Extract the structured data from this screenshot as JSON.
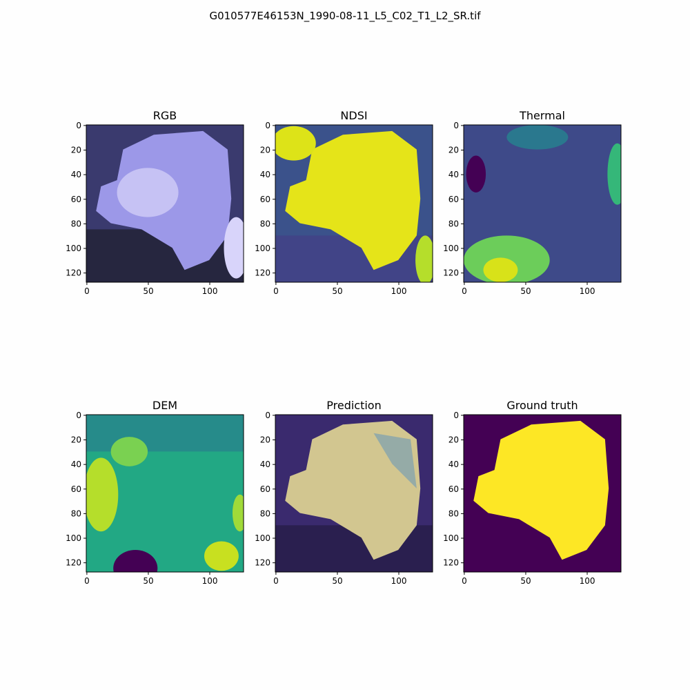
{
  "title": "G010577E46153N_1990-08-11_L5_C02_T1_L2_SR.tif",
  "chart_data": [
    {
      "type": "image",
      "title": "RGB",
      "xlim": [
        -0.5,
        127.5
      ],
      "ylim": [
        127.5,
        -0.5
      ],
      "xticks": [
        0,
        50,
        100
      ],
      "yticks": [
        0,
        20,
        40,
        60,
        80,
        100,
        120
      ]
    },
    {
      "type": "image",
      "title": "NDSI",
      "xlim": [
        -0.5,
        127.5
      ],
      "ylim": [
        127.5,
        -0.5
      ],
      "xticks": [
        0,
        50,
        100
      ],
      "yticks": [
        0,
        20,
        40,
        60,
        80,
        100,
        120
      ]
    },
    {
      "type": "image",
      "title": "Thermal",
      "xlim": [
        -0.5,
        127.5
      ],
      "ylim": [
        127.5,
        -0.5
      ],
      "xticks": [
        0,
        50,
        100
      ],
      "yticks": [
        0,
        20,
        40,
        60,
        80,
        100,
        120
      ]
    },
    {
      "type": "image",
      "title": "DEM",
      "xlim": [
        -0.5,
        127.5
      ],
      "ylim": [
        127.5,
        -0.5
      ],
      "xticks": [
        0,
        50,
        100
      ],
      "yticks": [
        0,
        20,
        40,
        60,
        80,
        100,
        120
      ]
    },
    {
      "type": "image",
      "title": "Prediction",
      "xlim": [
        -0.5,
        127.5
      ],
      "ylim": [
        127.5,
        -0.5
      ],
      "xticks": [
        0,
        50,
        100
      ],
      "yticks": [
        0,
        20,
        40,
        60,
        80,
        100,
        120
      ]
    },
    {
      "type": "image",
      "title": "Ground truth",
      "xlim": [
        -0.5,
        127.5
      ],
      "ylim": [
        127.5,
        -0.5
      ],
      "xticks": [
        0,
        50,
        100
      ],
      "yticks": [
        0,
        20,
        40,
        60,
        80,
        100,
        120
      ]
    }
  ]
}
